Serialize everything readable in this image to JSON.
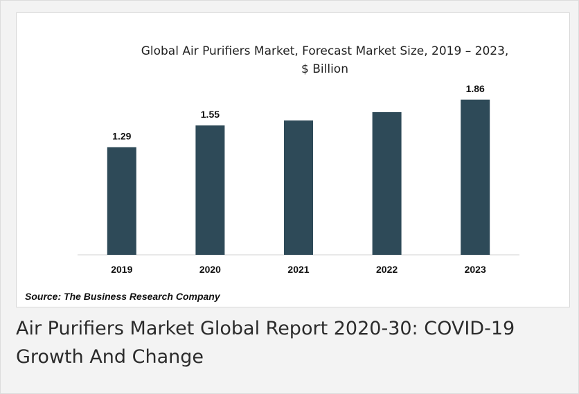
{
  "chart_data": {
    "type": "bar",
    "title": "Global Air Purifiers Market, Forecast Market Size, 2019 – 2023, $ Billion",
    "title_lines": [
      "Global Air Purifiers Market, Forecast Market Size, 2019 – 2023,",
      "$ Billion"
    ],
    "categories": [
      "2019",
      "2020",
      "2021",
      "2022",
      "2023"
    ],
    "values": [
      1.29,
      1.55,
      1.61,
      1.71,
      1.86
    ],
    "data_labels": [
      "1.29",
      "1.55",
      "",
      "",
      "1.86"
    ],
    "xlabel": "",
    "ylabel": "",
    "ylim": [
      0,
      1.9
    ],
    "grid": false,
    "bar_color": "#2e4a58"
  },
  "source": "Source: The Business Research Company",
  "caption": "Air Purifiers Market Global Report 2020-30: COVID-19 Growth And Change"
}
